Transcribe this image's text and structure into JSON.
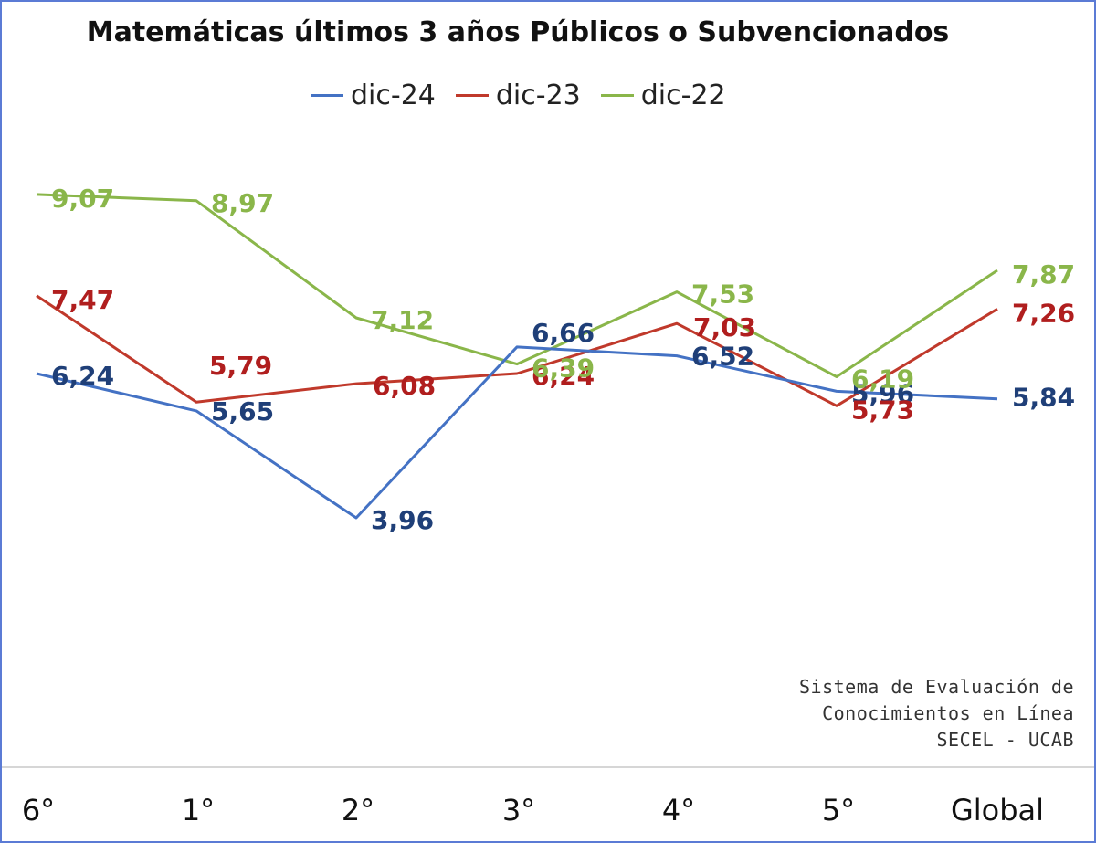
{
  "chart_data": {
    "type": "line",
    "title": "Matemáticas últimos 3 años Públicos o Subvencionados",
    "categories": [
      "6°",
      "1°",
      "2°",
      "3°",
      "4°",
      "5°",
      "Global"
    ],
    "series": [
      {
        "name": "dic-24",
        "color": "#4472c4",
        "label_color": "#1f3f78",
        "values": [
          6.24,
          5.65,
          3.96,
          6.66,
          6.52,
          5.96,
          5.84
        ],
        "labels": [
          "6,24",
          "5,65",
          "3,96",
          "6,66",
          "6,52",
          "5,96",
          "5,84"
        ]
      },
      {
        "name": "dic-23",
        "color": "#c0392b",
        "label_color": "#b01e1e",
        "values": [
          7.47,
          5.79,
          6.08,
          6.24,
          7.03,
          5.73,
          7.26
        ],
        "labels": [
          "7,47",
          "5,79",
          "6,08",
          "6,24",
          "7,03",
          "5,73",
          "7,26"
        ]
      },
      {
        "name": "dic-22",
        "color": "#8ab64a",
        "label_color": "#8ab64a",
        "values": [
          9.07,
          8.97,
          7.12,
          6.39,
          7.53,
          6.19,
          7.87
        ],
        "labels": [
          "9,07",
          "8,97",
          "7,12",
          "6,39",
          "7,53",
          "6,19",
          "7,87"
        ]
      }
    ],
    "legend_position": "top-center",
    "grid": false
  },
  "credit": {
    "line1": "Sistema de Evaluación de",
    "line2": "Conocimientos en Línea",
    "line3": "SECEL - UCAB"
  }
}
